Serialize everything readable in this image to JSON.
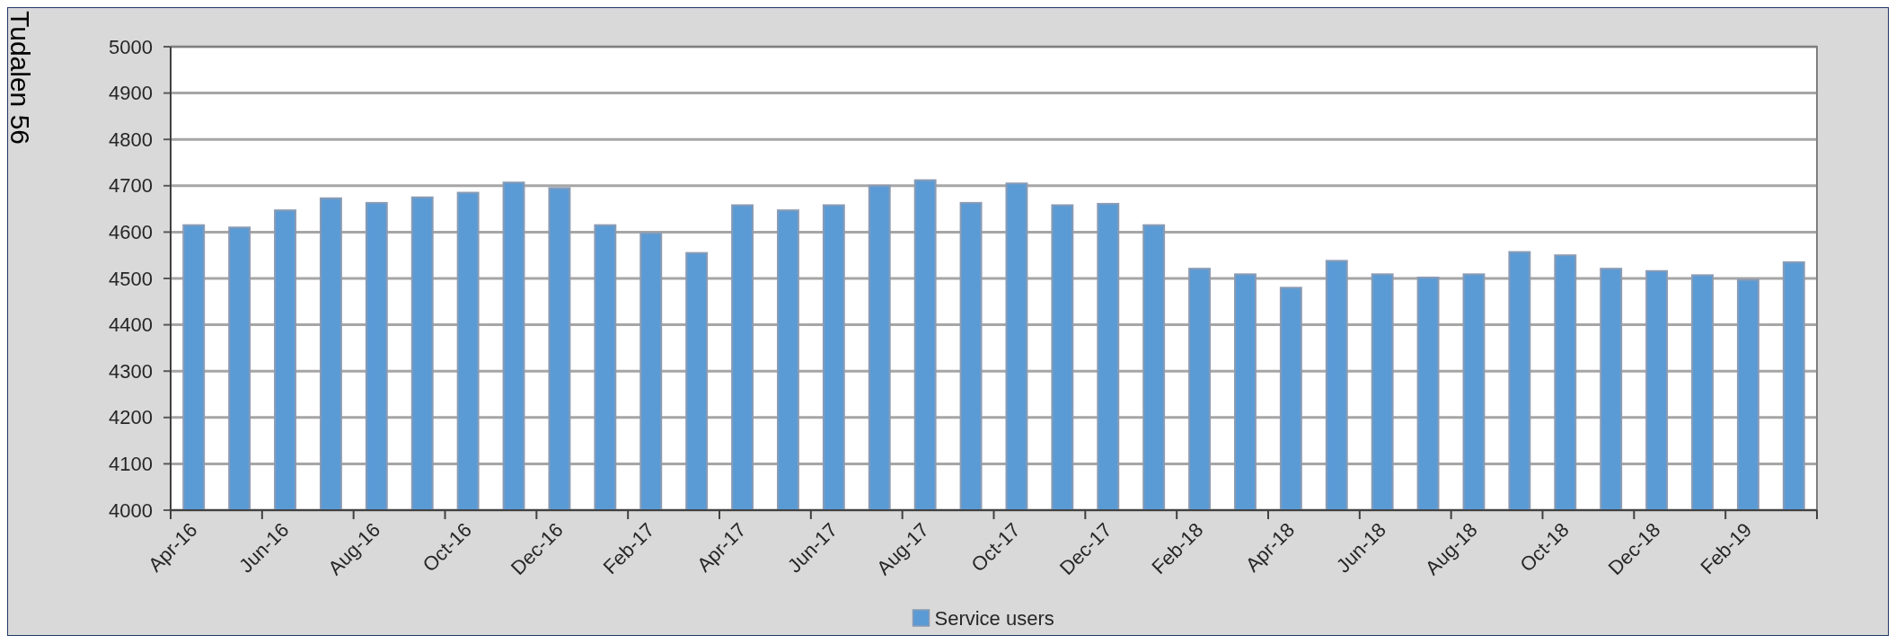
{
  "chart_data": {
    "type": "bar",
    "categories": [
      "Apr-16",
      null,
      "Jun-16",
      null,
      "Aug-16",
      null,
      "Oct-16",
      null,
      "Dec-16",
      null,
      "Feb-17",
      null,
      "Apr-17",
      null,
      "Jun-17",
      null,
      "Aug-17",
      null,
      "Oct-17",
      null,
      "Dec-17",
      null,
      "Feb-18",
      null,
      "Apr-18",
      null,
      "Jun-18",
      null,
      "Aug-18",
      null,
      "Oct-18",
      null,
      "Dec-18",
      null,
      "Feb-19",
      null
    ],
    "series": [
      {
        "name": "Service users",
        "color": "#5b9bd5",
        "values": [
          4615,
          4610,
          4647,
          4673,
          4663,
          4675,
          4685,
          4707,
          4695,
          4615,
          4598,
          4555,
          4658,
          4647,
          4658,
          4700,
          4712,
          4663,
          4705,
          4658,
          4661,
          4615,
          4521,
          4509,
          4480,
          4538,
          4509,
          4502,
          4509,
          4557,
          4550,
          4521,
          4516,
          4507,
          4497,
          4535
        ]
      }
    ],
    "ylim": [
      4000,
      5000
    ],
    "yticks": [
      4000,
      4100,
      4200,
      4300,
      4400,
      4500,
      4600,
      4700,
      4800,
      4900,
      5000
    ],
    "grid": "y",
    "legend": "bottom",
    "annotations": [
      "Tudalen 56"
    ]
  }
}
